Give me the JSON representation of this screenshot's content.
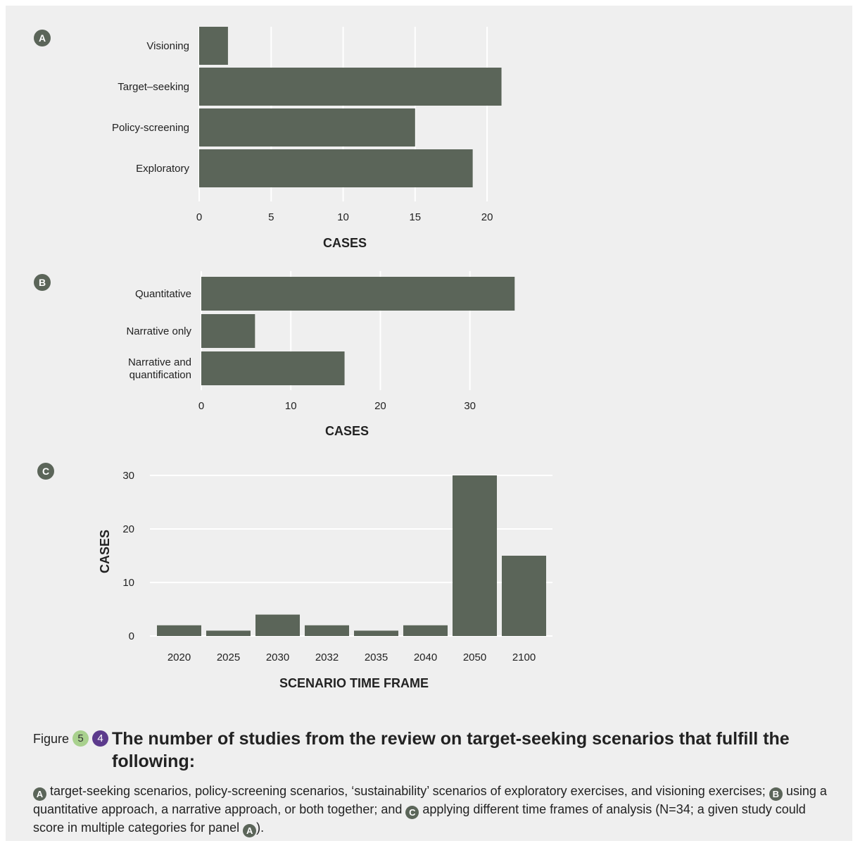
{
  "colors": {
    "bar": "#5b6559",
    "background": "#efefef",
    "grid": "#ffffff",
    "badge_green": "#a9d18e",
    "badge_purple": "#5c3a8c"
  },
  "chart_data": [
    {
      "type": "bar",
      "orientation": "horizontal",
      "panel_label": "A",
      "categories": [
        "Visioning",
        "Target–seeking",
        "Policy-screening",
        "Exploratory"
      ],
      "values": [
        2,
        21,
        15,
        19
      ],
      "xlabel": "CASES",
      "xlim": [
        0,
        22
      ],
      "xticks": [
        0,
        5,
        10,
        15,
        20
      ],
      "grid": true
    },
    {
      "type": "bar",
      "orientation": "horizontal",
      "panel_label": "B",
      "categories": [
        [
          "Quantitative"
        ],
        [
          "Narrative only"
        ],
        [
          "Narrative and",
          "quantification"
        ]
      ],
      "values": [
        35,
        6,
        16
      ],
      "xlabel": "CASES",
      "xlim": [
        0,
        36
      ],
      "xticks": [
        0,
        10,
        20,
        30
      ],
      "grid": true
    },
    {
      "type": "bar",
      "orientation": "vertical",
      "panel_label": "C",
      "categories": [
        "2020",
        "2025",
        "2030",
        "2032",
        "2035",
        "2040",
        "2050",
        "2100"
      ],
      "values": [
        2,
        1,
        4,
        2,
        1,
        2,
        30,
        15
      ],
      "xlabel": "SCENARIO TIME FRAME",
      "ylabel": "CASES",
      "ylim": [
        0,
        30
      ],
      "yticks": [
        0,
        10,
        20,
        30
      ],
      "grid": true
    }
  ],
  "caption": {
    "figure_label": "Figure",
    "badge_1": "5",
    "badge_2": "4",
    "title": "The number of studies from the review on target-seeking scenarios that fulfill the following:",
    "text_a": " target-seeking scenarios, policy-screening scenarios, ‘sustainability’ scenarios of exploratory exercises, and visioning exercises; ",
    "text_b": " using a quantitative approach, a narrative approach, or both together; and ",
    "text_c": " applying different time frames of analysis (N=34; a given study could score in multiple categories for panel ",
    "text_end": ")."
  }
}
